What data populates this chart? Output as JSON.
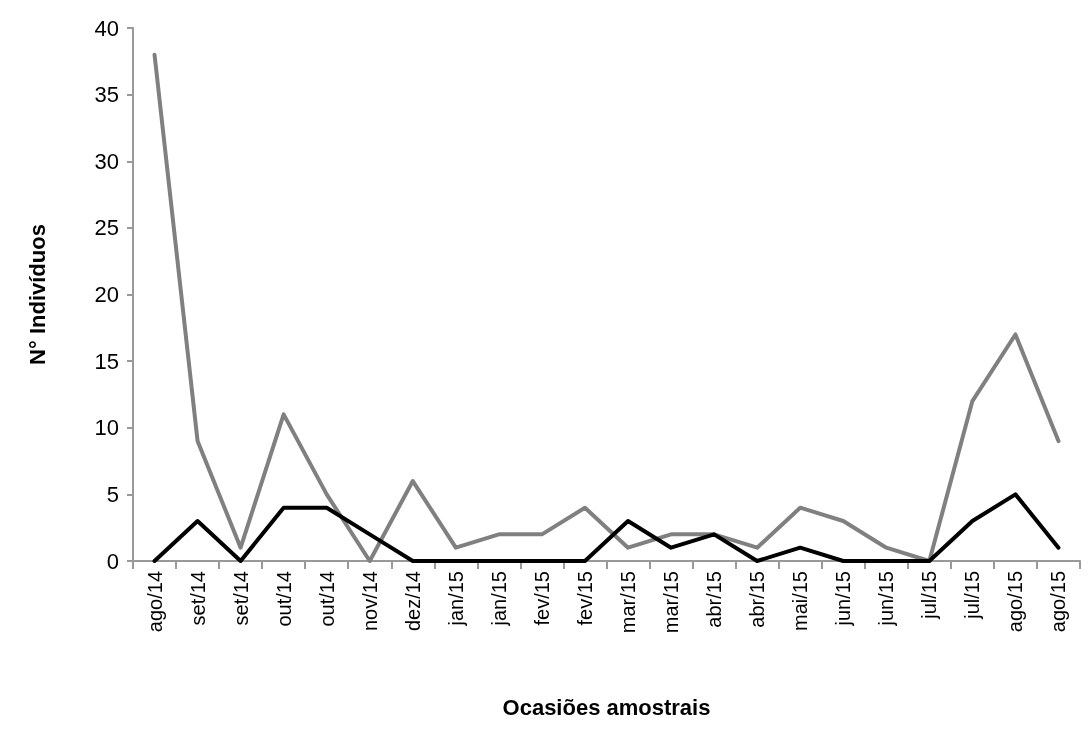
{
  "chart_data": {
    "type": "line",
    "xlabel": "Ocasiões amostrais",
    "ylabel": "N° Indivíduos",
    "categories": [
      "ago/14",
      "set/14",
      "set/14",
      "out/14",
      "out/14",
      "nov/14",
      "dez/14",
      "jan/15",
      "jan/15",
      "fev/15",
      "fev/15",
      "mar/15",
      "mar/15",
      "abr/15",
      "abr/15",
      "mai/15",
      "jun/15",
      "jun/15",
      "jul/15",
      "jul/15",
      "ago/15",
      "ago/15"
    ],
    "series": [
      {
        "color": "#808080",
        "values": [
          38,
          9,
          1,
          11,
          5,
          0,
          6,
          1,
          2,
          2,
          4,
          1,
          2,
          2,
          1,
          4,
          3,
          1,
          0,
          12,
          17,
          9
        ]
      },
      {
        "color": "#000000",
        "values": [
          0,
          3,
          0,
          4,
          4,
          2,
          0,
          0,
          0,
          0,
          0,
          3,
          1,
          2,
          0,
          1,
          0,
          0,
          0,
          3,
          5,
          1
        ]
      }
    ],
    "ylim": [
      0,
      40
    ],
    "yticks": [
      0,
      5,
      10,
      15,
      20,
      25,
      30,
      35,
      40
    ],
    "grid": false,
    "marker": "none",
    "line_style": "solid"
  }
}
